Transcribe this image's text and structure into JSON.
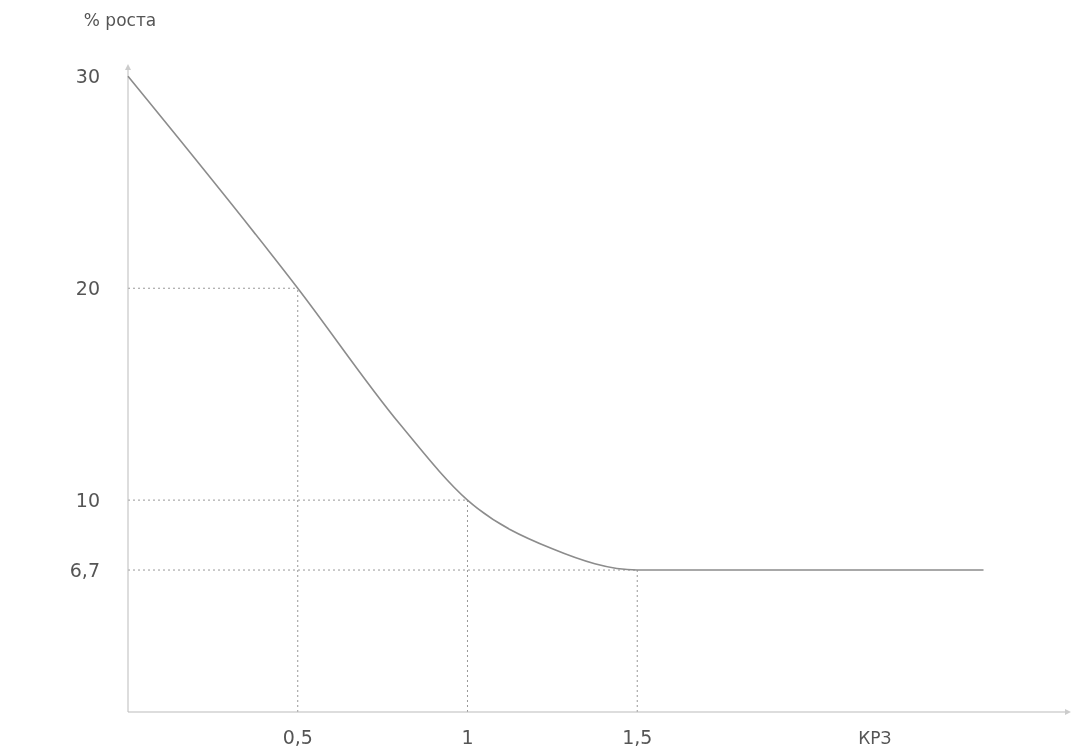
{
  "chart_data": {
    "type": "line",
    "xlabel": "КРЗ",
    "ylabel": "% роста",
    "x": [
      0,
      0.5,
      0.8,
      1,
      1.25,
      1.5,
      2.52
    ],
    "series": [
      {
        "color": "#8c8c8c",
        "values": [
          30,
          20,
          13.6,
          10,
          7.7,
          6.7,
          6.7
        ]
      }
    ],
    "xlim": [
      0,
      2.76
    ],
    "ylim": [
      0,
      30.3
    ],
    "xticks": [
      {
        "value": 0.5,
        "label": "0,5"
      },
      {
        "value": 1,
        "label": "1"
      },
      {
        "value": 1.5,
        "label": "1,5"
      }
    ],
    "yticks": [
      30,
      20,
      10,
      {
        "value": 6.7,
        "label": "6,7"
      }
    ],
    "ref_lines": [
      {
        "axis": "x",
        "value": 0.5,
        "line_style": "dotted"
      },
      {
        "axis": "x",
        "value": 1,
        "line_style": "dotted"
      },
      {
        "axis": "x",
        "value": 1.5,
        "line_style": "dotted"
      },
      {
        "axis": "y",
        "value": 20,
        "line_style": "dotted"
      },
      {
        "axis": "y",
        "value": 10,
        "line_style": "dotted"
      },
      {
        "axis": "y",
        "value": 6.7,
        "line_style": "dotted"
      }
    ],
    "grid": false,
    "marker": "none",
    "line_style": "solid"
  }
}
